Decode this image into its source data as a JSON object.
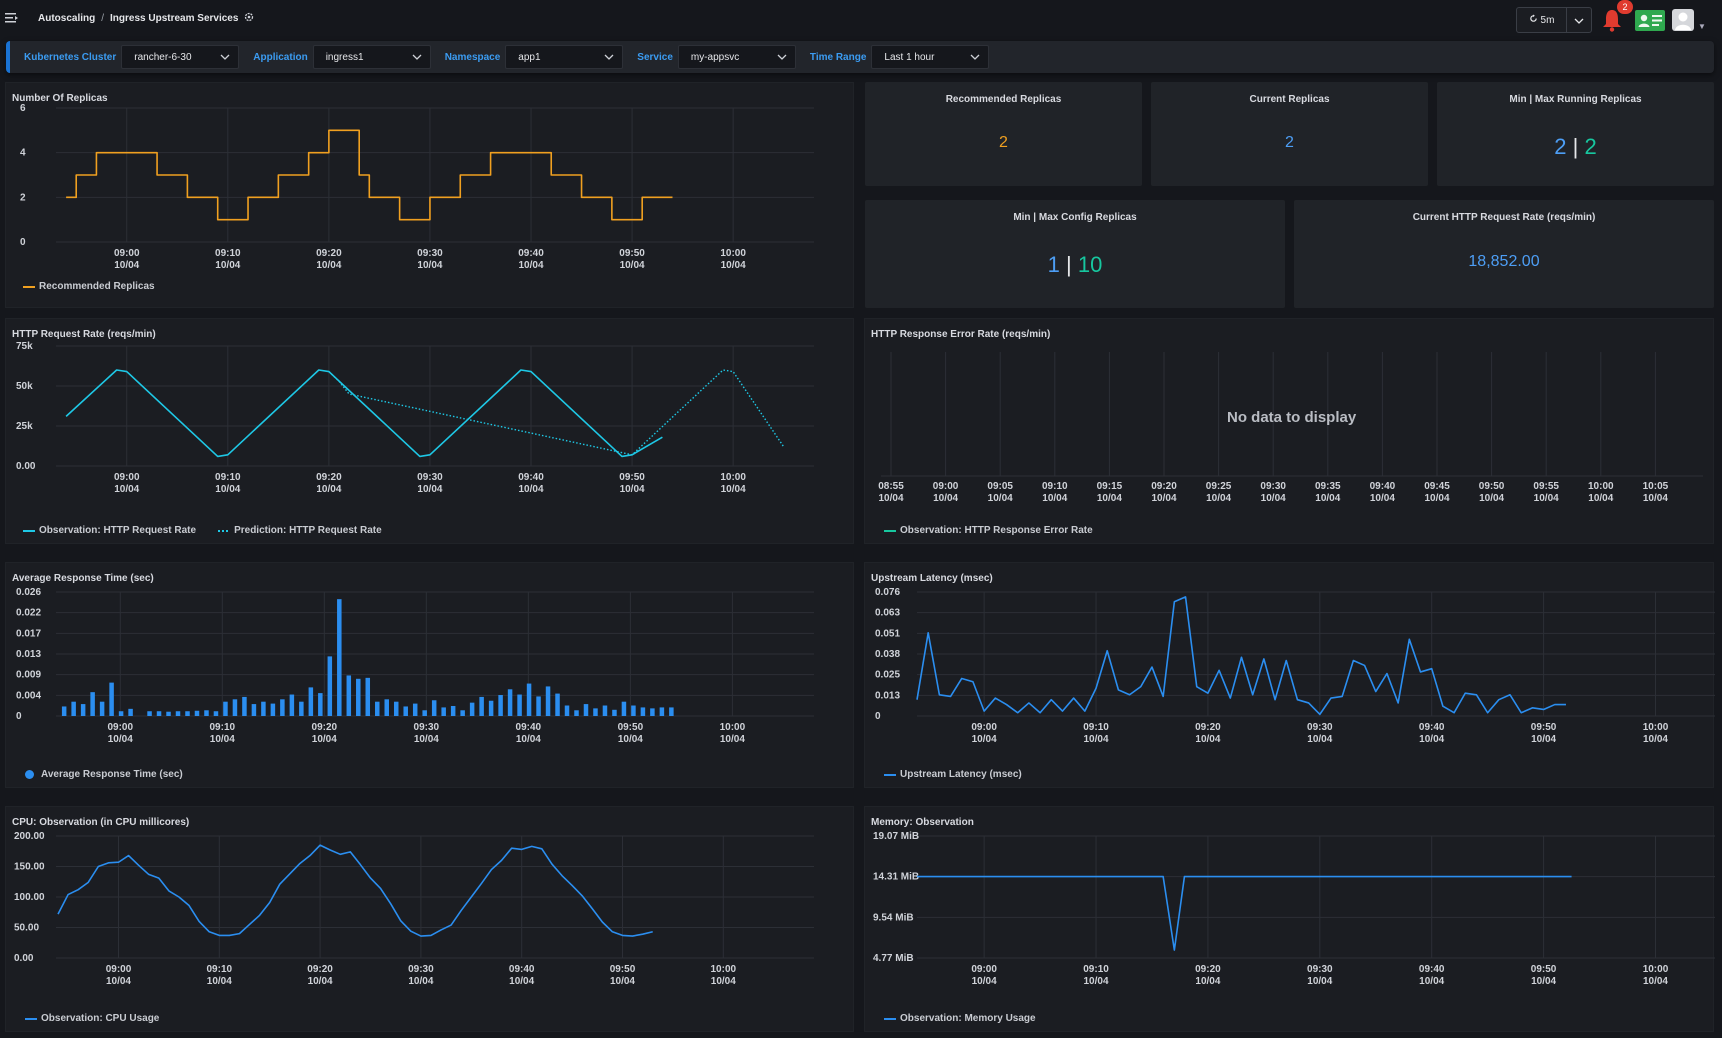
{
  "breadcrumb": {
    "section": "Autoscaling",
    "separator": "/",
    "page": "Ingress Upstream Services"
  },
  "toolbar": {
    "refresh_interval": "5m",
    "notification_count": "2"
  },
  "filters": [
    {
      "label": "Kubernetes Cluster",
      "value": "rancher-6-30"
    },
    {
      "label": "Application",
      "value": "ingress1"
    },
    {
      "label": "Namespace",
      "value": "app1"
    },
    {
      "label": "Service",
      "value": "my-appsvc"
    },
    {
      "label": "Time Range",
      "value": "Last 1 hour"
    }
  ],
  "time_ticks": [
    {
      "time": "09:00",
      "date": "10/04"
    },
    {
      "time": "09:10",
      "date": "10/04"
    },
    {
      "time": "09:20",
      "date": "10/04"
    },
    {
      "time": "09:30",
      "date": "10/04"
    },
    {
      "time": "09:40",
      "date": "10/04"
    },
    {
      "time": "09:50",
      "date": "10/04"
    },
    {
      "time": "10:00",
      "date": "10/04"
    }
  ],
  "stats": {
    "recommended": {
      "title": "Recommended Replicas",
      "value": "2"
    },
    "current": {
      "title": "Current Replicas",
      "value": "2"
    },
    "minmax_running": {
      "title": "Min | Max Running Replicas",
      "min": "2",
      "sep": "|",
      "max": "2"
    },
    "minmax_config": {
      "title": "Min | Max Config Replicas",
      "min": "1",
      "sep": "|",
      "max": "10"
    },
    "http_rate": {
      "title": "Current HTTP Request Rate (reqs/min)",
      "value": "18,852.00"
    }
  },
  "colors": {
    "orange": "#f0a020",
    "cyan": "#1ec8e6",
    "blue": "#2b8ef0",
    "green": "#17c79f",
    "accent": "#3b9cf2"
  },
  "chart_data": [
    {
      "id": "replicas",
      "type": "line",
      "title": "Number Of Replicas",
      "yticks": [
        "0",
        "2",
        "4",
        "6"
      ],
      "ylim": [
        0,
        6
      ],
      "xlim": [
        -7,
        68
      ],
      "series": [
        {
          "name": "Recommended Replicas",
          "color": "#f0a020",
          "step": true,
          "x": [
            -6,
            -5,
            -3,
            0,
            3,
            6,
            9,
            12,
            15,
            18,
            19,
            20,
            23,
            24,
            27,
            30,
            33,
            36,
            39,
            42,
            45,
            48,
            51,
            54
          ],
          "y": [
            2,
            3,
            4,
            4,
            3,
            2,
            1,
            2,
            3,
            4,
            4,
            5,
            3,
            2,
            1,
            2,
            3,
            4,
            4,
            3,
            2,
            1,
            2,
            2
          ]
        }
      ]
    },
    {
      "id": "http_rate",
      "type": "line",
      "title": "HTTP Request Rate (reqs/min)",
      "yticks": [
        "0.00",
        "25k",
        "50k",
        "75k"
      ],
      "ylim": [
        0,
        75000
      ],
      "xlim": [
        -7,
        68
      ],
      "series": [
        {
          "name": "Observation: HTTP Request Rate",
          "color": "#1ec8e6",
          "x": [
            -6,
            -1,
            0,
            9,
            10,
            19,
            20,
            29,
            30,
            39,
            40,
            49,
            50,
            53
          ],
          "y": [
            31000,
            60000,
            59000,
            6000,
            7000,
            60000,
            59000,
            6000,
            7000,
            60000,
            59000,
            6000,
            7000,
            18000
          ]
        },
        {
          "name": "Prediction: HTTP Request Rate",
          "color": "#1ec8e6",
          "dotted": true,
          "x": [
            20,
            21,
            22,
            50,
            59,
            60,
            65
          ],
          "y": [
            59000,
            53000,
            45000,
            7000,
            60000,
            59000,
            12000
          ]
        }
      ]
    },
    {
      "id": "error_rate",
      "type": "line",
      "title": "HTTP Response Error Rate (reqs/min)",
      "no_data": "No data to display",
      "xticks": [
        {
          "time": "08:55",
          "date": "10/04"
        },
        {
          "time": "09:00",
          "date": "10/04"
        },
        {
          "time": "09:05",
          "date": "10/04"
        },
        {
          "time": "09:10",
          "date": "10/04"
        },
        {
          "time": "09:15",
          "date": "10/04"
        },
        {
          "time": "09:20",
          "date": "10/04"
        },
        {
          "time": "09:25",
          "date": "10/04"
        },
        {
          "time": "09:30",
          "date": "10/04"
        },
        {
          "time": "09:35",
          "date": "10/04"
        },
        {
          "time": "09:40",
          "date": "10/04"
        },
        {
          "time": "09:45",
          "date": "10/04"
        },
        {
          "time": "09:50",
          "date": "10/04"
        },
        {
          "time": "09:55",
          "date": "10/04"
        },
        {
          "time": "10:00",
          "date": "10/04"
        },
        {
          "time": "10:05",
          "date": "10/04"
        }
      ],
      "series": [
        {
          "name": "Observation: HTTP Response Error Rate",
          "color": "#17c79f",
          "values": []
        }
      ]
    },
    {
      "id": "response_time",
      "type": "bar",
      "title": "Average Response Time (sec)",
      "yticks": [
        "0",
        "0.004",
        "0.009",
        "0.013",
        "0.017",
        "0.022",
        "0.026"
      ],
      "ylim": [
        0,
        0.026
      ],
      "xlim": [
        -6.3,
        68
      ],
      "series": [
        {
          "name": "Average Response Time (sec)",
          "color": "#2b8ef0",
          "values": [
            0.002,
            0.003,
            0.0025,
            0.005,
            0.003,
            0.007,
            0.001,
            0.0015,
            0,
            0.001,
            0.001,
            0.0009,
            0.001,
            0.001,
            0.0011,
            0.0012,
            0.001,
            0.003,
            0.0035,
            0.004,
            0.0025,
            0.003,
            0.0026,
            0.0035,
            0.0045,
            0.003,
            0.006,
            0.0048,
            0.0125,
            0.0245,
            0.0085,
            0.0078,
            0.008,
            0.003,
            0.0035,
            0.003,
            0.002,
            0.0026,
            0.0012,
            0.0033,
            0.0018,
            0.0021,
            0.0012,
            0.0028,
            0.004,
            0.0032,
            0.0044,
            0.0056,
            0.0045,
            0.0068,
            0.0041,
            0.0062,
            0.0047,
            0.0022,
            0.0012,
            0.0025,
            0.0016,
            0.0022,
            0.0013,
            0.003,
            0.0022,
            0.0018,
            0.0016,
            0.0018,
            0.0018
          ],
          "x0": -5.5,
          "dx": 0.93
        }
      ]
    },
    {
      "id": "latency",
      "type": "line",
      "title": "Upstream Latency (msec)",
      "yticks": [
        "0",
        "0.013",
        "0.025",
        "0.038",
        "0.051",
        "0.063",
        "0.076"
      ],
      "ylim": [
        0,
        0.076
      ],
      "xlim": [
        -6.0,
        68
      ],
      "series": [
        {
          "name": "Upstream Latency (msec)",
          "color": "#2b8ef0",
          "x": [
            -6,
            -5,
            -4,
            -3,
            -2,
            -1,
            0,
            1,
            2,
            3,
            4,
            5,
            6,
            7,
            8,
            9,
            10,
            11,
            12,
            13,
            14,
            15,
            16,
            17,
            18,
            19,
            20,
            21,
            22,
            23,
            24,
            25,
            26,
            27,
            28,
            29,
            30,
            31,
            32,
            33,
            34,
            35,
            36,
            37,
            38,
            39,
            40,
            41,
            42,
            43,
            44,
            45,
            46,
            47,
            48,
            49,
            50,
            51,
            52
          ],
          "y": [
            0.01,
            0.051,
            0.013,
            0.012,
            0.023,
            0.021,
            0.003,
            0.011,
            0.007,
            0.002,
            0.008,
            0.002,
            0.01,
            0.003,
            0.011,
            0.003,
            0.017,
            0.04,
            0.016,
            0.013,
            0.018,
            0.03,
            0.012,
            0.07,
            0.073,
            0.018,
            0.014,
            0.028,
            0.011,
            0.036,
            0.013,
            0.035,
            0.01,
            0.034,
            0.01,
            0.008,
            0.001,
            0.011,
            0.012,
            0.034,
            0.031,
            0.015,
            0.026,
            0.008,
            0.047,
            0.027,
            0.029,
            0.006,
            0.002,
            0.014,
            0.013,
            0.002,
            0.01,
            0.013,
            0.002,
            0.005,
            0.004,
            0.007,
            0.007
          ]
        }
      ]
    },
    {
      "id": "cpu",
      "type": "line",
      "title": "CPU: Observation (in CPU millicores)",
      "yticks": [
        "0.00",
        "50.00",
        "100.00",
        "150.00",
        "200.00"
      ],
      "ylim": [
        0,
        200
      ],
      "xlim": [
        -6.2,
        69
      ],
      "series": [
        {
          "name": "Observation: CPU Usage",
          "color": "#2b8ef0",
          "x": [
            -6,
            -5,
            -4,
            -3,
            -2,
            -1,
            0,
            1,
            2,
            3,
            4,
            5,
            6,
            7,
            8,
            9,
            10,
            11,
            12,
            13,
            14,
            15,
            16,
            17,
            18,
            19,
            20,
            21,
            22,
            23,
            24,
            25,
            26,
            27,
            28,
            29,
            30,
            31,
            32,
            33,
            34,
            35,
            36,
            37,
            38,
            39,
            40,
            41,
            42,
            43,
            44,
            45,
            46,
            47,
            48,
            49,
            50,
            51,
            52,
            53
          ],
          "y": [
            72,
            104,
            112,
            124,
            150,
            156,
            157,
            168,
            152,
            137,
            131,
            110,
            100,
            86,
            60,
            43,
            37,
            37,
            40,
            55,
            70,
            91,
            121,
            138,
            155,
            168,
            185,
            177,
            170,
            174,
            153,
            131,
            114,
            89,
            61,
            44,
            36,
            37,
            46,
            54,
            78,
            100,
            122,
            145,
            160,
            180,
            178,
            183,
            179,
            154,
            135,
            119,
            102,
            81,
            59,
            43,
            37,
            36,
            39,
            43
          ]
        }
      ]
    },
    {
      "id": "memory",
      "type": "line",
      "title": "Memory: Observation",
      "yticks": [
        "4.77 MiB",
        "9.54 MiB",
        "14.31 MiB",
        "19.07 MiB"
      ],
      "ylim": [
        4.77,
        19.07
      ],
      "xlim": [
        -6.0,
        68
      ],
      "series": [
        {
          "name": "Observation: Memory Usage",
          "color": "#2b8ef0",
          "x": [
            -6,
            16,
            17,
            17.9,
            52.5
          ],
          "y": [
            14.31,
            14.31,
            5.7,
            14.31,
            14.31
          ]
        }
      ]
    }
  ]
}
